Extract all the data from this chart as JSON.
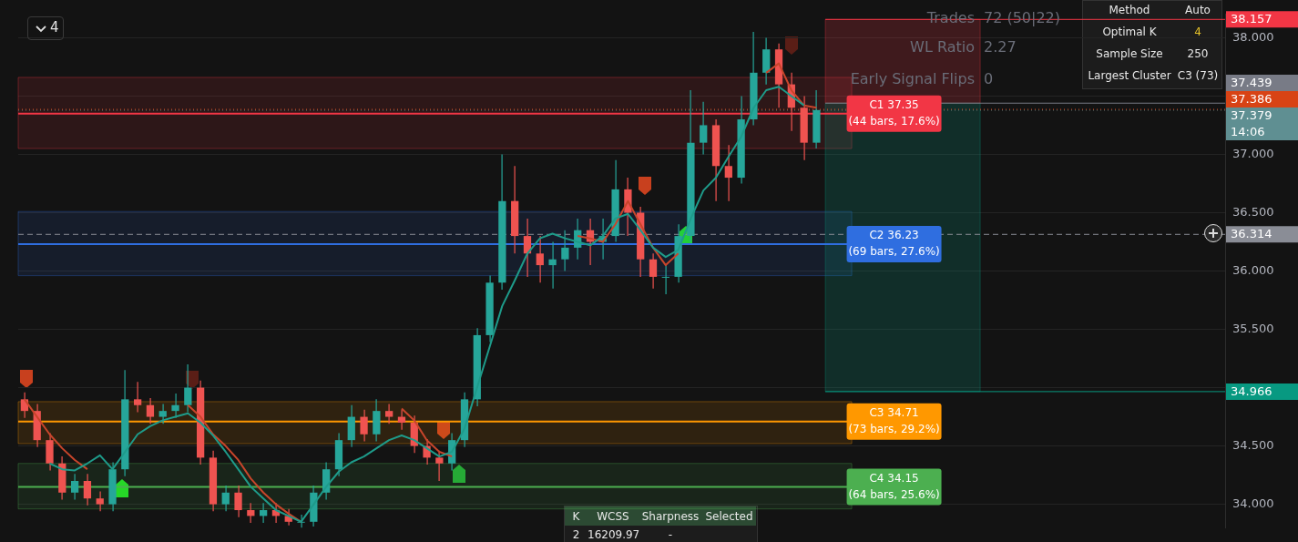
{
  "chart_data": {
    "type": "candlestick",
    "categories": [
      null,
      null,
      null,
      null,
      null,
      null,
      null,
      null,
      null,
      null,
      null,
      null,
      null,
      null,
      null,
      null,
      null,
      null,
      null,
      null,
      null,
      null,
      null,
      null,
      null,
      null,
      null,
      null,
      null,
      null,
      null,
      null,
      null,
      null,
      null,
      null,
      null,
      null,
      null,
      null,
      null,
      null,
      null,
      null,
      null,
      null,
      null,
      null,
      null,
      null,
      null,
      null,
      null,
      null,
      null,
      null,
      null,
      null,
      null,
      null,
      null,
      null,
      null,
      null,
      null,
      null,
      null,
      null,
      null,
      null,
      null,
      null,
      null,
      null,
      null,
      null,
      null,
      null,
      null,
      null,
      null,
      null,
      null,
      null,
      null,
      null,
      null,
      null,
      null,
      null,
      null,
      null,
      null,
      null,
      null,
      null
    ],
    "ohlc": [
      [
        34.9,
        34.96,
        34.74,
        34.8
      ],
      [
        34.8,
        34.86,
        34.49,
        34.55
      ],
      [
        34.55,
        34.61,
        34.29,
        34.35
      ],
      [
        34.35,
        34.41,
        34.04,
        34.1
      ],
      [
        34.1,
        34.26,
        34.04,
        34.2
      ],
      [
        34.2,
        34.26,
        33.99,
        34.05
      ],
      [
        34.05,
        34.11,
        33.94,
        34.0
      ],
      [
        34.0,
        34.36,
        33.94,
        34.3
      ],
      [
        34.3,
        35.15,
        34.24,
        34.9
      ],
      [
        34.9,
        35.05,
        34.79,
        34.85
      ],
      [
        34.85,
        34.91,
        34.69,
        34.75
      ],
      [
        34.75,
        34.86,
        34.69,
        34.8
      ],
      [
        34.8,
        34.95,
        34.74,
        34.85
      ],
      [
        34.85,
        35.2,
        34.79,
        35.0
      ],
      [
        35.0,
        35.06,
        34.34,
        34.4
      ],
      [
        34.4,
        34.46,
        33.94,
        34.0
      ],
      [
        34.0,
        34.16,
        33.94,
        34.1
      ],
      [
        34.1,
        34.16,
        33.89,
        33.95
      ],
      [
        33.95,
        34.01,
        33.84,
        33.9
      ],
      [
        33.9,
        34.01,
        33.84,
        33.95
      ],
      [
        33.95,
        34.01,
        33.84,
        33.9
      ],
      [
        33.9,
        33.96,
        33.82,
        33.85
      ],
      [
        33.85,
        33.91,
        33.8,
        33.85
      ],
      [
        33.85,
        34.16,
        33.81,
        34.1
      ],
      [
        34.1,
        34.36,
        34.04,
        34.3
      ],
      [
        34.3,
        34.61,
        34.24,
        34.55
      ],
      [
        34.55,
        34.85,
        34.49,
        34.75
      ],
      [
        34.75,
        34.81,
        34.54,
        34.6
      ],
      [
        34.6,
        34.9,
        34.54,
        34.8
      ],
      [
        34.8,
        34.86,
        34.69,
        34.75
      ],
      [
        34.75,
        34.81,
        34.64,
        34.7
      ],
      [
        34.7,
        34.76,
        34.44,
        34.5
      ],
      [
        34.5,
        34.56,
        34.34,
        34.4
      ],
      [
        34.4,
        34.46,
        34.2,
        34.35
      ],
      [
        34.35,
        34.61,
        34.29,
        34.55
      ],
      [
        34.55,
        34.96,
        34.49,
        34.9
      ],
      [
        34.9,
        35.51,
        34.84,
        35.45
      ],
      [
        35.45,
        35.96,
        35.39,
        35.9
      ],
      [
        35.9,
        37.0,
        35.84,
        36.6
      ],
      [
        36.6,
        36.9,
        36.15,
        36.3
      ],
      [
        36.3,
        36.45,
        35.95,
        36.15
      ],
      [
        36.15,
        36.3,
        35.9,
        36.05
      ],
      [
        36.05,
        36.25,
        35.85,
        36.1
      ],
      [
        36.1,
        36.35,
        36.0,
        36.2
      ],
      [
        36.2,
        36.45,
        36.1,
        36.35
      ],
      [
        36.35,
        36.45,
        36.05,
        36.25
      ],
      [
        36.25,
        36.45,
        36.1,
        36.3
      ],
      [
        36.3,
        36.95,
        36.25,
        36.7
      ],
      [
        36.7,
        36.8,
        36.3,
        36.5
      ],
      [
        36.5,
        36.55,
        35.95,
        36.1
      ],
      [
        36.1,
        36.15,
        35.85,
        35.95
      ],
      [
        35.95,
        36.05,
        35.8,
        35.95
      ],
      [
        35.95,
        36.4,
        35.9,
        36.3
      ],
      [
        36.3,
        37.55,
        36.25,
        37.1
      ],
      [
        37.1,
        37.45,
        37.0,
        37.25
      ],
      [
        37.25,
        37.3,
        36.6,
        36.9
      ],
      [
        36.9,
        37.08,
        36.6,
        36.8
      ],
      [
        36.8,
        37.5,
        36.75,
        37.3
      ],
      [
        37.3,
        38.05,
        37.25,
        37.7
      ],
      [
        37.7,
        38.0,
        37.6,
        37.9
      ],
      [
        37.9,
        37.95,
        37.4,
        37.6
      ],
      [
        37.6,
        37.7,
        37.2,
        37.4
      ],
      [
        37.4,
        37.5,
        36.95,
        37.1
      ],
      [
        37.1,
        37.55,
        37.05,
        37.38
      ],
      null,
      null,
      null,
      null,
      null,
      null,
      null,
      null,
      null,
      null,
      null,
      null,
      null,
      null,
      null,
      null,
      null,
      null,
      null,
      null,
      null,
      null,
      null,
      null,
      null,
      null,
      null,
      null,
      null,
      null,
      null,
      null
    ],
    "colors": [
      "#ef5350",
      "#ef5350",
      "#ef5350",
      "#ef5350",
      "#26a69a",
      "#ef5350",
      "#ef5350",
      "#26a69a",
      "#26a69a",
      "#ef5350",
      "#ef5350",
      "#26a69a",
      "#26a69a",
      "#26a69a",
      "#ef5350",
      "#ef5350",
      "#26a69a",
      "#ef5350",
      "#ef5350",
      "#26a69a",
      "#ef5350",
      "#ef5350",
      "#26a69a",
      "#26a69a",
      "#26a69a",
      "#26a69a",
      "#26a69a",
      "#ef5350",
      "#26a69a",
      "#ef5350",
      "#ef5350",
      "#ef5350",
      "#ef5350",
      "#ef5350",
      "#26a69a",
      "#26a69a",
      "#26a69a",
      "#26a69a",
      "#26a69a",
      "#ef5350",
      "#ef5350",
      "#ef5350",
      "#26a69a",
      "#26a69a",
      "#26a69a",
      "#ef5350",
      "#26a69a",
      "#26a69a",
      "#ef5350",
      "#ef5350",
      "#ef5350",
      "#26a69a",
      "#26a69a",
      "#26a69a",
      "#26a69a",
      "#ef5350",
      "#ef5350",
      "#26a69a",
      "#26a69a",
      "#26a69a",
      "#ef5350",
      "#ef5350",
      "#ef5350",
      "#26a69a",
      null,
      null,
      null,
      null,
      null,
      null,
      null,
      null,
      null,
      null,
      null,
      null,
      null,
      null,
      null,
      null,
      null,
      null,
      null,
      null,
      null,
      null,
      null,
      null,
      null,
      null,
      null,
      null,
      null,
      null,
      null,
      null
    ],
    "series": [
      {
        "type": "line",
        "color": "#1e9b8a",
        "values": [
          null,
          null,
          34.35,
          34.3,
          34.29,
          34.35,
          34.42,
          34.3,
          34.45,
          34.6,
          34.67,
          34.72,
          34.75,
          34.78,
          34.7,
          34.59,
          34.45,
          34.3,
          34.15,
          34.05,
          33.95,
          33.9,
          33.85,
          34.0,
          34.15,
          34.28,
          34.36,
          34.41,
          34.48,
          34.55,
          34.59,
          34.55,
          34.48,
          34.41,
          34.45,
          34.65,
          35.0,
          35.35,
          35.7,
          35.92,
          36.15,
          36.28,
          36.32,
          36.28,
          36.25,
          36.22,
          36.3,
          36.45,
          36.49,
          36.35,
          36.2,
          36.12,
          36.18,
          36.45,
          36.69,
          36.8,
          36.98,
          37.15,
          37.4,
          37.55,
          37.58,
          37.5,
          37.42,
          null,
          null,
          null,
          null,
          null,
          null,
          null,
          null,
          null,
          null,
          null,
          null,
          null,
          null,
          null,
          null,
          null,
          null,
          null,
          null,
          null,
          null,
          null,
          null,
          null,
          null,
          null,
          null,
          null,
          null,
          null,
          null,
          null
        ]
      },
      {
        "type": "line",
        "color": "#c8452b",
        "values": [
          34.9,
          34.75,
          34.6,
          34.48,
          34.38,
          34.3,
          null,
          null,
          null,
          null,
          null,
          null,
          null,
          34.85,
          34.75,
          34.6,
          34.5,
          34.38,
          34.22,
          34.1,
          34.0,
          33.92,
          33.85,
          null,
          null,
          null,
          null,
          null,
          null,
          null,
          34.82,
          34.72,
          34.55,
          34.45,
          34.41,
          null,
          null,
          null,
          null,
          null,
          null,
          null,
          null,
          null,
          36.3,
          36.28,
          36.25,
          36.4,
          36.6,
          36.4,
          36.2,
          36.05,
          36.15,
          null,
          null,
          null,
          null,
          null,
          null,
          37.7,
          37.78,
          37.55,
          37.42,
          37.4,
          null,
          null,
          null,
          null,
          null,
          null,
          null,
          null,
          null,
          null,
          null,
          null,
          null,
          null,
          null,
          null,
          null,
          null,
          null,
          null,
          null,
          null,
          null,
          null,
          null,
          null,
          null,
          null,
          null,
          null,
          null,
          null
        ]
      }
    ],
    "ylim": [
      33.8,
      38.2
    ],
    "yticks": [
      {
        "value": 34,
        "label": "34.000"
      },
      {
        "value": 34.5,
        "label": "34.500"
      },
      {
        "value": 35,
        "label": null
      },
      {
        "value": 35.5,
        "label": "35.500"
      },
      {
        "value": 36,
        "label": "36.000"
      },
      {
        "value": 36.5,
        "label": "36.500"
      },
      {
        "value": 37,
        "label": "37.000"
      },
      {
        "value": 37.5,
        "label": null
      },
      {
        "value": 38,
        "label": "38.000"
      }
    ],
    "grid": "y",
    "ref_lines": [
      {
        "axis": "y",
        "value": 37.35,
        "label": "C1 37.35\n(44 bars, 17.6%)",
        "color": "#f23645"
      },
      {
        "axis": "y",
        "value": 36.23,
        "label": "C2 36.23\n(69 bars, 27.6%)",
        "color": "#2f6ee0"
      },
      {
        "axis": "y",
        "value": 34.71,
        "label": "C3 34.71\n(73 bars, 29.2%)",
        "color": "#ff9800"
      },
      {
        "axis": "y",
        "value": 34.15,
        "label": "C4 34.15\n(64 bars, 25.6%)",
        "color": "#4caf50"
      },
      {
        "axis": "y",
        "value": 37.379,
        "label": "37.379\n14:06",
        "color": "#5f8f92",
        "line_style": "dotted"
      },
      {
        "axis": "y",
        "value": 37.386,
        "label": "37.386",
        "color": "#d84315",
        "line_style": "dotted"
      },
      {
        "axis": "y",
        "value": 36.314,
        "label": "36.314",
        "color": "#8a8d96",
        "line_style": "dashed"
      },
      {
        "axis": "y",
        "value": 38.157,
        "label": "38.157",
        "color": "#f23645"
      },
      {
        "axis": "y",
        "value": 37.439,
        "label": "37.439",
        "color": "#787b86"
      },
      {
        "axis": "y",
        "value": 34.966,
        "label": "34.966",
        "color": "#089981"
      }
    ],
    "bands": [
      {
        "axis": "y",
        "from": 37.05,
        "to": 37.66,
        "color": "#f23645"
      },
      {
        "axis": "y",
        "from": 35.96,
        "to": 36.51,
        "color": "#2f6ee0"
      },
      {
        "axis": "y",
        "from": 34.52,
        "to": 34.88,
        "color": "#ff9800"
      },
      {
        "axis": "y",
        "from": 33.96,
        "to": 34.35,
        "color": "#4caf50"
      },
      {
        "axis": "y",
        "from": 37.439,
        "to": 38.157,
        "color": "#f23645"
      },
      {
        "axis": "y",
        "from": 34.966,
        "to": 37.439,
        "color": "#089981"
      }
    ],
    "annotations": [
      "4",
      "Trades",
      "72 (50|22)",
      "WL Ratio",
      "2.27",
      "Early Signal Flips",
      "0",
      "Method",
      "Auto",
      "Optimal K",
      "4",
      "Sample Size",
      "250",
      "Largest Cluster",
      "C3 (73)",
      "K",
      "WCSS",
      "Sharpness",
      "Selected",
      "2",
      "16209.97",
      "-"
    ]
  }
}
